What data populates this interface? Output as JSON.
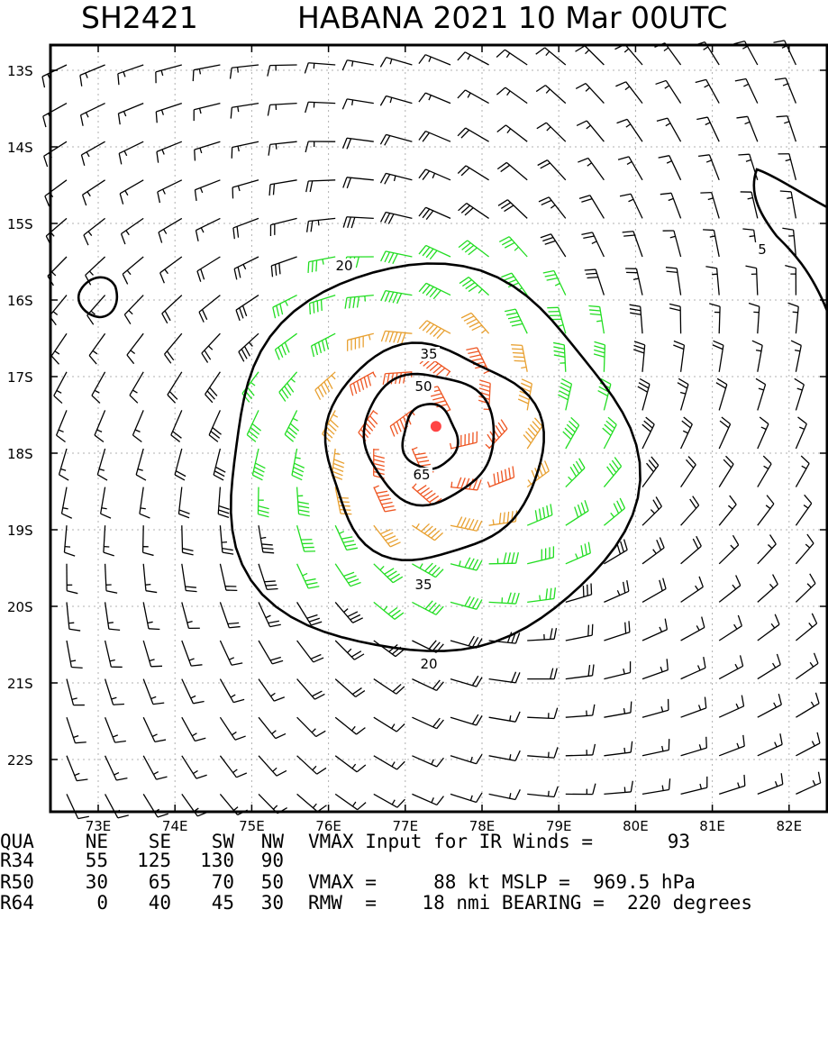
{
  "header": {
    "storm_id": "SH2421",
    "title": "HABANA 2021 10 Mar 00UTC"
  },
  "colors": {
    "frame": "#000000",
    "weak_barbs": "#000000",
    "r34_barbs": "#22dd22",
    "r50_barbs": "#e8a030",
    "r64_barbs": "#ee5522",
    "center": "#ff4444",
    "contour": "#000000",
    "grid": "#b0b0b0"
  },
  "map": {
    "lon_range": [
      72.0,
      82.5
    ],
    "lat_range": [
      -22.7,
      -12.5
    ],
    "lon_ticks": [
      "73E",
      "74E",
      "75E",
      "76E",
      "77E",
      "78E",
      "79E",
      "80E",
      "81E",
      "82E"
    ],
    "lat_ticks": [
      "13S",
      "14S",
      "15S",
      "16S",
      "17S",
      "18S",
      "19S",
      "20S",
      "21S",
      "22S"
    ],
    "center": {
      "lon": 77.4,
      "lat": -17.65
    },
    "contour_labels": [
      "20",
      "35",
      "50",
      "65",
      "35",
      "20",
      "5"
    ],
    "barb_style": "wind barbs, clockwise cyclonic circulation (Southern Hemisphere)"
  },
  "table": {
    "header": [
      "QUA",
      "NE",
      "SE",
      "SW",
      "NW"
    ],
    "rows": [
      {
        "label": "R34",
        "values": [
          "55",
          "125",
          "130",
          "90"
        ]
      },
      {
        "label": "R50",
        "values": [
          "30",
          "65",
          "70",
          "50"
        ]
      },
      {
        "label": "R64",
        "values": [
          "0",
          "40",
          "45",
          "30"
        ]
      }
    ],
    "line1": "VMAX Input for IR Winds =",
    "line1_value": "93",
    "line3": "VMAX =     88 kt MSLP =  969.5 hPa",
    "line4": "RMW  =    18 nmi BEARING =  220 degrees"
  }
}
